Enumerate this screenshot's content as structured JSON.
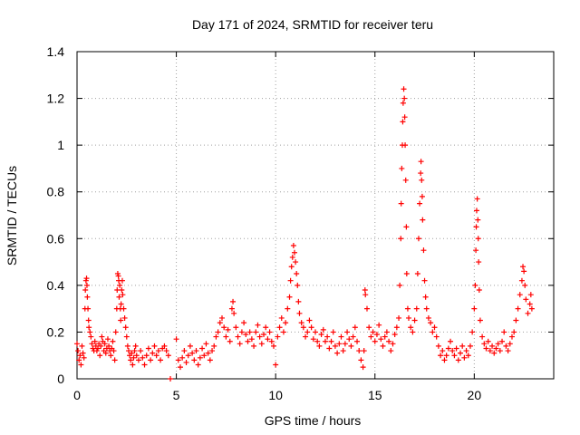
{
  "chart_data": {
    "type": "scatter",
    "title": "Day 171 of 2024, SRMTID for receiver teru",
    "xlabel": "GPS time / hours",
    "ylabel": "SRMTID / TECUs",
    "xlim": [
      0,
      24
    ],
    "ylim": [
      0,
      1.4
    ],
    "xticks": [
      0,
      5,
      10,
      15,
      20
    ],
    "xtick_labels": [
      "0",
      "5",
      "10",
      "15",
      "20"
    ],
    "yticks": [
      0,
      0.2,
      0.4,
      0.6,
      0.8,
      1.0,
      1.2,
      1.4
    ],
    "ytick_labels": [
      "0",
      "0.2",
      "0.4",
      "0.6",
      "0.8",
      "1",
      "1.2",
      "1.4"
    ],
    "grid": true,
    "marker": "+",
    "color": "#ff0000",
    "series": [
      {
        "name": "SRMTID",
        "points": [
          [
            0.0,
            0.15
          ],
          [
            0.05,
            0.12
          ],
          [
            0.1,
            0.08
          ],
          [
            0.15,
            0.1
          ],
          [
            0.2,
            0.06
          ],
          [
            0.25,
            0.14
          ],
          [
            0.3,
            0.11
          ],
          [
            0.35,
            0.09
          ],
          [
            0.4,
            0.3
          ],
          [
            0.42,
            0.38
          ],
          [
            0.45,
            0.42
          ],
          [
            0.48,
            0.43
          ],
          [
            0.5,
            0.4
          ],
          [
            0.52,
            0.35
          ],
          [
            0.55,
            0.3
          ],
          [
            0.58,
            0.25
          ],
          [
            0.6,
            0.22
          ],
          [
            0.65,
            0.2
          ],
          [
            0.7,
            0.18
          ],
          [
            0.75,
            0.15
          ],
          [
            0.8,
            0.13
          ],
          [
            0.85,
            0.12
          ],
          [
            0.9,
            0.16
          ],
          [
            0.95,
            0.14
          ],
          [
            1.0,
            0.12
          ],
          [
            1.05,
            0.13
          ],
          [
            1.1,
            0.15
          ],
          [
            1.15,
            0.1
          ],
          [
            1.2,
            0.14
          ],
          [
            1.25,
            0.18
          ],
          [
            1.3,
            0.16
          ],
          [
            1.35,
            0.12
          ],
          [
            1.4,
            0.15
          ],
          [
            1.45,
            0.11
          ],
          [
            1.5,
            0.13
          ],
          [
            1.55,
            0.17
          ],
          [
            1.6,
            0.14
          ],
          [
            1.65,
            0.12
          ],
          [
            1.7,
            0.1
          ],
          [
            1.75,
            0.13
          ],
          [
            1.8,
            0.16
          ],
          [
            1.85,
            0.12
          ],
          [
            1.9,
            0.08
          ],
          [
            1.95,
            0.2
          ],
          [
            2.0,
            0.3
          ],
          [
            2.02,
            0.38
          ],
          [
            2.05,
            0.45
          ],
          [
            2.08,
            0.44
          ],
          [
            2.1,
            0.42
          ],
          [
            2.12,
            0.35
          ],
          [
            2.15,
            0.4
          ],
          [
            2.18,
            0.3
          ],
          [
            2.2,
            0.25
          ],
          [
            2.22,
            0.32
          ],
          [
            2.25,
            0.38
          ],
          [
            2.28,
            0.42
          ],
          [
            2.3,
            0.36
          ],
          [
            2.35,
            0.3
          ],
          [
            2.4,
            0.26
          ],
          [
            2.45,
            0.22
          ],
          [
            2.5,
            0.18
          ],
          [
            2.55,
            0.14
          ],
          [
            2.6,
            0.12
          ],
          [
            2.65,
            0.1
          ],
          [
            2.7,
            0.08
          ],
          [
            2.75,
            0.11
          ],
          [
            2.8,
            0.06
          ],
          [
            2.85,
            0.09
          ],
          [
            2.9,
            0.12
          ],
          [
            2.95,
            0.14
          ],
          [
            3.0,
            0.1
          ],
          [
            3.1,
            0.08
          ],
          [
            3.2,
            0.12
          ],
          [
            3.3,
            0.09
          ],
          [
            3.4,
            0.06
          ],
          [
            3.5,
            0.1
          ],
          [
            3.6,
            0.13
          ],
          [
            3.7,
            0.08
          ],
          [
            3.8,
            0.11
          ],
          [
            3.9,
            0.14
          ],
          [
            4.0,
            0.1
          ],
          [
            4.1,
            0.12
          ],
          [
            4.2,
            0.08
          ],
          [
            4.3,
            0.13
          ],
          [
            4.4,
            0.14
          ],
          [
            4.5,
            0.12
          ],
          [
            4.6,
            0.1
          ],
          [
            4.7,
            0.0
          ],
          [
            5.0,
            0.17
          ],
          [
            5.1,
            0.08
          ],
          [
            5.2,
            0.05
          ],
          [
            5.3,
            0.09
          ],
          [
            5.4,
            0.12
          ],
          [
            5.5,
            0.07
          ],
          [
            5.6,
            0.1
          ],
          [
            5.7,
            0.14
          ],
          [
            5.8,
            0.11
          ],
          [
            5.9,
            0.08
          ],
          [
            6.0,
            0.12
          ],
          [
            6.1,
            0.06
          ],
          [
            6.2,
            0.09
          ],
          [
            6.3,
            0.13
          ],
          [
            6.4,
            0.1
          ],
          [
            6.5,
            0.15
          ],
          [
            6.6,
            0.11
          ],
          [
            6.7,
            0.08
          ],
          [
            6.8,
            0.12
          ],
          [
            6.9,
            0.14
          ],
          [
            7.0,
            0.18
          ],
          [
            7.1,
            0.2
          ],
          [
            7.2,
            0.24
          ],
          [
            7.3,
            0.26
          ],
          [
            7.4,
            0.22
          ],
          [
            7.5,
            0.18
          ],
          [
            7.6,
            0.21
          ],
          [
            7.7,
            0.16
          ],
          [
            7.8,
            0.3
          ],
          [
            7.85,
            0.33
          ],
          [
            7.9,
            0.28
          ],
          [
            8.0,
            0.22
          ],
          [
            8.1,
            0.18
          ],
          [
            8.2,
            0.15
          ],
          [
            8.3,
            0.2
          ],
          [
            8.4,
            0.24
          ],
          [
            8.5,
            0.19
          ],
          [
            8.6,
            0.16
          ],
          [
            8.7,
            0.2
          ],
          [
            8.8,
            0.17
          ],
          [
            8.9,
            0.14
          ],
          [
            9.0,
            0.2
          ],
          [
            9.1,
            0.23
          ],
          [
            9.2,
            0.18
          ],
          [
            9.3,
            0.15
          ],
          [
            9.4,
            0.19
          ],
          [
            9.5,
            0.22
          ],
          [
            9.6,
            0.17
          ],
          [
            9.7,
            0.2
          ],
          [
            9.8,
            0.16
          ],
          [
            9.9,
            0.14
          ],
          [
            10.0,
            0.06
          ],
          [
            10.1,
            0.18
          ],
          [
            10.2,
            0.22
          ],
          [
            10.3,
            0.26
          ],
          [
            10.4,
            0.2
          ],
          [
            10.5,
            0.24
          ],
          [
            10.6,
            0.3
          ],
          [
            10.7,
            0.35
          ],
          [
            10.75,
            0.42
          ],
          [
            10.8,
            0.48
          ],
          [
            10.85,
            0.52
          ],
          [
            10.9,
            0.57
          ],
          [
            10.95,
            0.54
          ],
          [
            11.0,
            0.5
          ],
          [
            11.05,
            0.45
          ],
          [
            11.1,
            0.4
          ],
          [
            11.15,
            0.33
          ],
          [
            11.2,
            0.28
          ],
          [
            11.3,
            0.24
          ],
          [
            11.4,
            0.22
          ],
          [
            11.5,
            0.18
          ],
          [
            11.6,
            0.2
          ],
          [
            11.7,
            0.25
          ],
          [
            11.8,
            0.22
          ],
          [
            11.9,
            0.17
          ],
          [
            12.0,
            0.2
          ],
          [
            12.1,
            0.16
          ],
          [
            12.2,
            0.14
          ],
          [
            12.3,
            0.19
          ],
          [
            12.4,
            0.21
          ],
          [
            12.5,
            0.16
          ],
          [
            12.6,
            0.18
          ],
          [
            12.7,
            0.13
          ],
          [
            12.8,
            0.16
          ],
          [
            12.9,
            0.2
          ],
          [
            13.0,
            0.14
          ],
          [
            13.1,
            0.11
          ],
          [
            13.2,
            0.15
          ],
          [
            13.3,
            0.18
          ],
          [
            13.4,
            0.12
          ],
          [
            13.5,
            0.15
          ],
          [
            13.6,
            0.2
          ],
          [
            13.7,
            0.17
          ],
          [
            13.8,
            0.14
          ],
          [
            13.9,
            0.18
          ],
          [
            14.0,
            0.22
          ],
          [
            14.1,
            0.16
          ],
          [
            14.2,
            0.12
          ],
          [
            14.3,
            0.08
          ],
          [
            14.4,
            0.05
          ],
          [
            14.45,
            0.12
          ],
          [
            14.5,
            0.38
          ],
          [
            14.52,
            0.36
          ],
          [
            14.6,
            0.3
          ],
          [
            14.7,
            0.22
          ],
          [
            14.8,
            0.18
          ],
          [
            14.9,
            0.2
          ],
          [
            15.0,
            0.16
          ],
          [
            15.1,
            0.19
          ],
          [
            15.2,
            0.23
          ],
          [
            15.3,
            0.17
          ],
          [
            15.4,
            0.14
          ],
          [
            15.5,
            0.18
          ],
          [
            15.6,
            0.2
          ],
          [
            15.7,
            0.16
          ],
          [
            15.8,
            0.12
          ],
          [
            15.9,
            0.15
          ],
          [
            16.0,
            0.19
          ],
          [
            16.1,
            0.22
          ],
          [
            16.2,
            0.26
          ],
          [
            16.25,
            0.4
          ],
          [
            16.3,
            0.6
          ],
          [
            16.32,
            0.75
          ],
          [
            16.35,
            0.9
          ],
          [
            16.38,
            1.0
          ],
          [
            16.4,
            1.1
          ],
          [
            16.42,
            1.18
          ],
          [
            16.45,
            1.24
          ],
          [
            16.48,
            1.2
          ],
          [
            16.5,
            1.12
          ],
          [
            16.52,
            1.0
          ],
          [
            16.55,
            0.85
          ],
          [
            16.58,
            0.65
          ],
          [
            16.6,
            0.45
          ],
          [
            16.65,
            0.3
          ],
          [
            16.7,
            0.26
          ],
          [
            16.8,
            0.22
          ],
          [
            16.9,
            0.2
          ],
          [
            17.0,
            0.25
          ],
          [
            17.1,
            0.3
          ],
          [
            17.15,
            0.45
          ],
          [
            17.2,
            0.6
          ],
          [
            17.25,
            0.75
          ],
          [
            17.3,
            0.88
          ],
          [
            17.32,
            0.93
          ],
          [
            17.35,
            0.85
          ],
          [
            17.38,
            0.78
          ],
          [
            17.4,
            0.68
          ],
          [
            17.45,
            0.55
          ],
          [
            17.5,
            0.42
          ],
          [
            17.55,
            0.35
          ],
          [
            17.6,
            0.3
          ],
          [
            17.7,
            0.26
          ],
          [
            17.8,
            0.24
          ],
          [
            17.9,
            0.2
          ],
          [
            18.0,
            0.22
          ],
          [
            18.1,
            0.18
          ],
          [
            18.2,
            0.14
          ],
          [
            18.3,
            0.1
          ],
          [
            18.4,
            0.12
          ],
          [
            18.5,
            0.08
          ],
          [
            18.6,
            0.1
          ],
          [
            18.7,
            0.13
          ],
          [
            18.8,
            0.16
          ],
          [
            18.9,
            0.12
          ],
          [
            19.0,
            0.1
          ],
          [
            19.1,
            0.13
          ],
          [
            19.2,
            0.08
          ],
          [
            19.3,
            0.11
          ],
          [
            19.4,
            0.14
          ],
          [
            19.5,
            0.09
          ],
          [
            19.6,
            0.12
          ],
          [
            19.7,
            0.1
          ],
          [
            19.8,
            0.14
          ],
          [
            19.9,
            0.2
          ],
          [
            20.0,
            0.3
          ],
          [
            20.05,
            0.4
          ],
          [
            20.08,
            0.55
          ],
          [
            20.1,
            0.65
          ],
          [
            20.12,
            0.72
          ],
          [
            20.15,
            0.77
          ],
          [
            20.18,
            0.68
          ],
          [
            20.2,
            0.6
          ],
          [
            20.22,
            0.5
          ],
          [
            20.25,
            0.38
          ],
          [
            20.3,
            0.25
          ],
          [
            20.4,
            0.18
          ],
          [
            20.5,
            0.15
          ],
          [
            20.6,
            0.13
          ],
          [
            20.7,
            0.16
          ],
          [
            20.8,
            0.12
          ],
          [
            20.9,
            0.14
          ],
          [
            21.0,
            0.11
          ],
          [
            21.1,
            0.13
          ],
          [
            21.2,
            0.15
          ],
          [
            21.3,
            0.12
          ],
          [
            21.4,
            0.16
          ],
          [
            21.5,
            0.2
          ],
          [
            21.6,
            0.14
          ],
          [
            21.7,
            0.12
          ],
          [
            21.8,
            0.15
          ],
          [
            21.9,
            0.18
          ],
          [
            22.0,
            0.2
          ],
          [
            22.1,
            0.25
          ],
          [
            22.2,
            0.3
          ],
          [
            22.3,
            0.36
          ],
          [
            22.4,
            0.42
          ],
          [
            22.45,
            0.48
          ],
          [
            22.5,
            0.46
          ],
          [
            22.55,
            0.4
          ],
          [
            22.6,
            0.34
          ],
          [
            22.7,
            0.28
          ],
          [
            22.8,
            0.32
          ],
          [
            22.85,
            0.36
          ],
          [
            22.9,
            0.3
          ]
        ]
      }
    ]
  }
}
